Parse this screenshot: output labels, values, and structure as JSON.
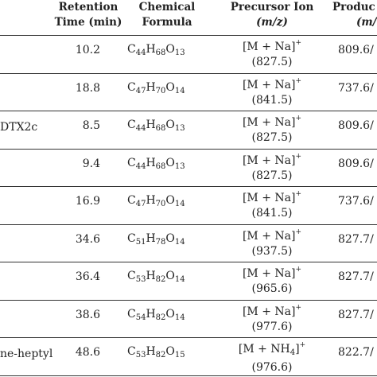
{
  "header": {
    "retention_line1": "Retention",
    "retention_line2": "Time (min)",
    "formula_line1": "Chemical",
    "formula_line2": "Formula",
    "precursor_line1": "Precursor Ion",
    "precursor_line2": "(m/z)",
    "product_line1": "Produc",
    "product_line2": "(m/"
  },
  "rows": [
    {
      "name": "",
      "rt": "10.2",
      "c": "44",
      "h": "68",
      "o": "13",
      "adduct": "[M + Na]",
      "charge": "+",
      "mz": "(827.5)",
      "product": "809.6/"
    },
    {
      "name": "",
      "rt": "18.8",
      "c": "47",
      "h": "70",
      "o": "14",
      "adduct": "[M + Na]",
      "charge": "+",
      "mz": "(841.5)",
      "product": "737.6/"
    },
    {
      "name": "DTX2c",
      "rt": "8.5",
      "c": "44",
      "h": "68",
      "o": "13",
      "adduct": "[M + Na]",
      "charge": "+",
      "mz": "(827.5)",
      "product": "809.6/"
    },
    {
      "name": "",
      "rt": "9.4",
      "c": "44",
      "h": "68",
      "o": "13",
      "adduct": "[M + Na]",
      "charge": "+",
      "mz": "(827.5)",
      "product": "809.6/"
    },
    {
      "name": "",
      "rt": "16.9",
      "c": "47",
      "h": "70",
      "o": "14",
      "adduct": "[M + Na]",
      "charge": "+",
      "mz": "(841.5)",
      "product": "737.6/"
    },
    {
      "name": "",
      "rt": "34.6",
      "c": "51",
      "h": "78",
      "o": "14",
      "adduct": "[M + Na]",
      "charge": "+",
      "mz": "(937.5)",
      "product": "827.7/"
    },
    {
      "name": "",
      "rt": "36.4",
      "c": "53",
      "h": "82",
      "o": "14",
      "adduct": "[M + Na]",
      "charge": "+",
      "mz": "(965.6)",
      "product": "827.7/"
    },
    {
      "name": "",
      "rt": "38.6",
      "c": "54",
      "h": "82",
      "o": "14",
      "adduct": "[M + Na]",
      "charge": "+",
      "mz": "(977.6)",
      "product": "827.7/"
    },
    {
      "name": "ne-heptyl",
      "rt": "48.6",
      "c": "53",
      "h": "82",
      "o": "15",
      "adduct": "[M + NH",
      "nh4sub": "4",
      "adduct_close": "]",
      "charge": "+",
      "mz": "(976.6)",
      "product": "822.7/"
    }
  ]
}
